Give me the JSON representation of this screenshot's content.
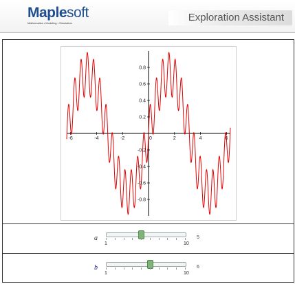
{
  "header": {
    "brand_main": "Maple",
    "brand_soft": "soft",
    "tagline": "Mathematics • Modeling • Simulation",
    "title": "Exploration Assistant"
  },
  "plot": {
    "x_ticks": [
      "-6",
      "-4",
      "-2",
      "0",
      "2",
      "4",
      "6"
    ],
    "y_ticks": [
      "0.8",
      "0.6",
      "0.4",
      "0.2",
      "-0.2",
      "-0.4",
      "-0.6",
      "-0.8"
    ],
    "curve_color": "#e00000"
  },
  "chart_data": {
    "type": "line",
    "xlim": [
      -6.3,
      6.3
    ],
    "ylim": [
      -1.0,
      1.0
    ],
    "function": "0.72*sin(x) + 0.26*sin(13*x)",
    "series": [
      {
        "color": "#e00000",
        "x_range": [
          -6.3,
          6.3
        ]
      }
    ],
    "grid": false
  },
  "sliders": [
    {
      "label": "a",
      "min": "1",
      "max": "10",
      "value_text": "5",
      "value": 5
    },
    {
      "label": "b",
      "min": "1",
      "max": "10",
      "value_text": "6",
      "value": 6
    }
  ]
}
